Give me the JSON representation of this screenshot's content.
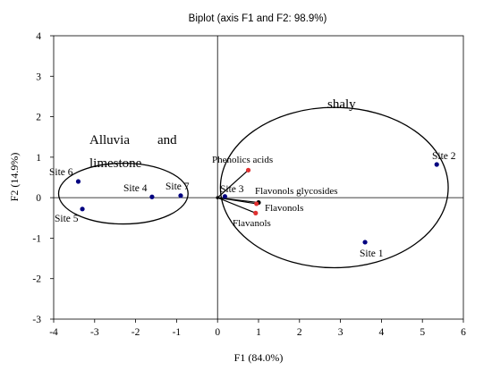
{
  "chart_data": {
    "type": "scatter",
    "title": "Biplot (axis F1 and F2: 98.9%)",
    "xlabel": "F1 (84.0%)",
    "ylabel": "F2 (14.9%)",
    "xlim": [
      -4,
      6
    ],
    "ylim": [
      -3,
      4
    ],
    "xticks": [
      "-4",
      "-3",
      "-2",
      "-1",
      "0",
      "1",
      "2",
      "3",
      "4",
      "5",
      "6"
    ],
    "yticks": [
      "-3",
      "-2",
      "-1",
      "0",
      "1",
      "2",
      "3",
      "4"
    ],
    "grid": false,
    "observations": [
      {
        "label": "Site 1",
        "x": 3.6,
        "y": -1.1
      },
      {
        "label": "Site 2",
        "x": 5.35,
        "y": 0.82
      },
      {
        "label": "Site 3",
        "x": 0.18,
        "y": 0.03
      },
      {
        "label": "Site 4",
        "x": -1.6,
        "y": 0.02
      },
      {
        "label": "Site 5",
        "x": -3.3,
        "y": -0.28
      },
      {
        "label": "Site 6",
        "x": -3.4,
        "y": 0.4
      },
      {
        "label": "Site 7",
        "x": -0.9,
        "y": 0.05
      }
    ],
    "variables": [
      {
        "label": "Phenolics acids",
        "x": 0.75,
        "y": 0.68
      },
      {
        "label": "Flavonols glycosides",
        "x": 1.0,
        "y": -0.12
      },
      {
        "label": "Flavonols",
        "x": 0.95,
        "y": -0.15
      },
      {
        "label": "Flavanols",
        "x": 0.93,
        "y": -0.38
      }
    ],
    "groups": [
      {
        "label": "Alluvia",
        "label2": "and",
        "label3": "limestone",
        "cx": -2.3,
        "cy": 0.1,
        "rx": 1.58,
        "ry": 0.75
      },
      {
        "label": "shaly",
        "cx": 2.85,
        "cy": 0.25,
        "rx": 2.78,
        "ry": 1.98
      }
    ],
    "colors": {
      "observation": "#000080",
      "variable": "#e03030",
      "vector": "#000000",
      "axis": "#000000",
      "frame": "#000000"
    }
  }
}
